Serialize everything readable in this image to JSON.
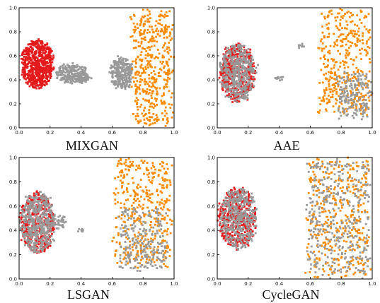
{
  "figure": {
    "colors": {
      "red": "#e31a1c",
      "gray": "#999999",
      "orange": "#ff8c00"
    }
  },
  "chart_data": [
    {
      "type": "scatter",
      "title": "MIXGAN",
      "xlim": [
        0.0,
        1.0
      ],
      "ylim": [
        0.0,
        1.0
      ],
      "xticks": [
        "0.0",
        "0.2",
        "0.4",
        "0.6",
        "0.8",
        "1.0"
      ],
      "yticks": [
        "0.0",
        "0.2",
        "0.4",
        "0.6",
        "0.8",
        "1.0"
      ],
      "grid": false,
      "clusters": [
        {
          "color": "red",
          "cx": 0.12,
          "cy": 0.53,
          "rx": 0.1,
          "ry": 0.2,
          "n": 650
        },
        {
          "color": "gray",
          "cx": 0.34,
          "cy": 0.45,
          "rx": 0.1,
          "ry": 0.08,
          "n": 220
        },
        {
          "color": "gray",
          "cx": 0.41,
          "cy": 0.41,
          "rx": 0.04,
          "ry": 0.03,
          "n": 40
        },
        {
          "color": "gray",
          "cx": 0.66,
          "cy": 0.45,
          "rx": 0.07,
          "ry": 0.13,
          "n": 260
        },
        {
          "color": "orange",
          "cx": 0.86,
          "cy": 0.5,
          "rx": 0.12,
          "ry": 0.47,
          "n": 450,
          "scatter": true
        }
      ]
    },
    {
      "type": "scatter",
      "title": "AAE",
      "xlim": [
        0.0,
        1.0
      ],
      "ylim": [
        0.0,
        1.0
      ],
      "xticks": [
        "0.0",
        "0.2",
        "0.4",
        "0.6",
        "0.8",
        "1.0"
      ],
      "yticks": [
        "0.0",
        "0.2",
        "0.4",
        "0.6",
        "0.8",
        "1.0"
      ],
      "grid": false,
      "clusters": [
        {
          "color": "red",
          "cx": 0.13,
          "cy": 0.46,
          "rx": 0.11,
          "ry": 0.24,
          "n": 450
        },
        {
          "color": "gray",
          "cx": 0.13,
          "cy": 0.46,
          "rx": 0.11,
          "ry": 0.24,
          "n": 450
        },
        {
          "color": "gray",
          "cx": 0.4,
          "cy": 0.41,
          "rx": 0.015,
          "ry": 0.02,
          "n": 12
        },
        {
          "color": "gray",
          "cx": 0.54,
          "cy": 0.69,
          "rx": 0.012,
          "ry": 0.015,
          "n": 8
        },
        {
          "color": "orange",
          "cx": 0.83,
          "cy": 0.55,
          "rx": 0.16,
          "ry": 0.43,
          "n": 400,
          "scatter": true
        },
        {
          "color": "gray",
          "cx": 0.88,
          "cy": 0.27,
          "rx": 0.1,
          "ry": 0.18,
          "n": 170,
          "scatter": true
        }
      ]
    },
    {
      "type": "scatter",
      "title": "LSGAN",
      "xlim": [
        0.0,
        1.0
      ],
      "ylim": [
        0.0,
        1.0
      ],
      "xticks": [
        "0.0",
        "0.2",
        "0.4",
        "0.6",
        "0.8",
        "1.0"
      ],
      "yticks": [
        "0.0",
        "0.2",
        "0.4",
        "0.6",
        "0.8",
        "1.0"
      ],
      "grid": false,
      "clusters": [
        {
          "color": "red",
          "cx": 0.12,
          "cy": 0.46,
          "rx": 0.11,
          "ry": 0.25,
          "n": 420
        },
        {
          "color": "gray",
          "cx": 0.12,
          "cy": 0.46,
          "rx": 0.11,
          "ry": 0.25,
          "n": 480
        },
        {
          "color": "gray",
          "cx": 0.27,
          "cy": 0.47,
          "rx": 0.03,
          "ry": 0.05,
          "n": 30
        },
        {
          "color": "gray",
          "cx": 0.4,
          "cy": 0.4,
          "rx": 0.015,
          "ry": 0.015,
          "n": 8
        },
        {
          "color": "orange",
          "cx": 0.8,
          "cy": 0.55,
          "rx": 0.18,
          "ry": 0.44,
          "n": 420,
          "scatter": true
        },
        {
          "color": "gray",
          "cx": 0.8,
          "cy": 0.33,
          "rx": 0.15,
          "ry": 0.25,
          "n": 230,
          "scatter": true
        }
      ]
    },
    {
      "type": "scatter",
      "title": "CycleGAN",
      "xlim": [
        0.0,
        1.0
      ],
      "ylim": [
        0.0,
        1.0
      ],
      "xticks": [
        "0.0",
        "0.2",
        "0.4",
        "0.6",
        "0.8",
        "1.0"
      ],
      "yticks": [
        "0.0",
        "0.2",
        "0.4",
        "0.6",
        "0.8",
        "1.0"
      ],
      "grid": false,
      "clusters": [
        {
          "color": "red",
          "cx": 0.13,
          "cy": 0.5,
          "rx": 0.12,
          "ry": 0.25,
          "n": 450
        },
        {
          "color": "gray",
          "cx": 0.14,
          "cy": 0.5,
          "rx": 0.12,
          "ry": 0.25,
          "n": 420
        },
        {
          "color": "orange",
          "cx": 0.78,
          "cy": 0.5,
          "rx": 0.2,
          "ry": 0.47,
          "n": 380,
          "scatter": true
        },
        {
          "color": "gray",
          "cx": 0.78,
          "cy": 0.5,
          "rx": 0.2,
          "ry": 0.47,
          "n": 350,
          "scatter": true
        }
      ]
    }
  ]
}
